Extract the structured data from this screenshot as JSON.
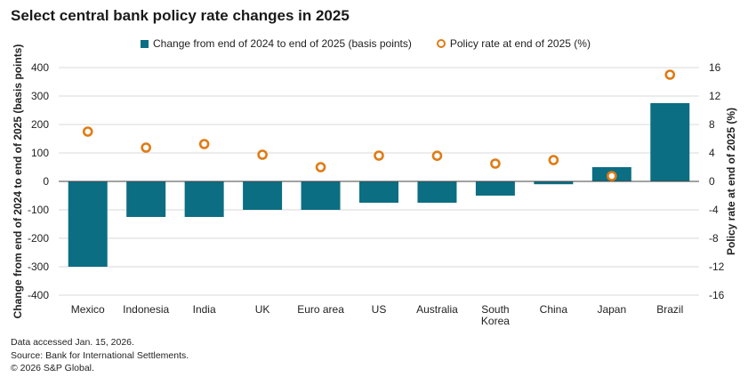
{
  "chart_data": {
    "type": "bar",
    "title": "Select central bank policy rate changes in 2025",
    "categories": [
      "Mexico",
      "Indonesia",
      "India",
      "UK",
      "Euro area",
      "US",
      "Australia",
      "South Korea",
      "China",
      "Japan",
      "Brazil"
    ],
    "category_lines": [
      [
        "Mexico"
      ],
      [
        "Indonesia"
      ],
      [
        "India"
      ],
      [
        "UK"
      ],
      [
        "Euro area"
      ],
      [
        "US"
      ],
      [
        "Australia"
      ],
      [
        "South",
        "Korea"
      ],
      [
        "China"
      ],
      [
        "Japan"
      ],
      [
        "Brazil"
      ]
    ],
    "series": [
      {
        "name": "Change from end of 2024 to end of 2025 (basis points)",
        "type": "bar",
        "axis": "left",
        "color": "#0b6e82",
        "values": [
          -300,
          -125,
          -125,
          -100,
          -100,
          -75,
          -75,
          -50,
          -10,
          50,
          275
        ]
      },
      {
        "name": "Policy rate at end of 2025 (%)",
        "type": "scatter",
        "axis": "right",
        "color": "#e07b14",
        "values": [
          7.0,
          4.75,
          5.25,
          3.75,
          2.0,
          3.625,
          3.6,
          2.5,
          3.0,
          0.75,
          15.0
        ]
      }
    ],
    "ylabel": "Change from end of 2024 to end of 2025 (basis points)",
    "ylabel_right": "Policy rate at end of 2025 (%)",
    "ylim": [
      -400,
      400
    ],
    "yticks": [
      "400",
      "300",
      "200",
      "100",
      "0",
      "-100",
      "-200",
      "-300",
      "-400"
    ],
    "ylim_right": [
      -16,
      16
    ],
    "yticks_right": [
      "16",
      "12",
      "8",
      "4",
      "0",
      "-4",
      "-8",
      "-12",
      "-16"
    ],
    "grid": true
  },
  "footer": {
    "line1": "Data accessed Jan. 15, 2026.",
    "line2": "Source: Bank for International Settlements.",
    "line3": "© 2026 S&P Global."
  }
}
